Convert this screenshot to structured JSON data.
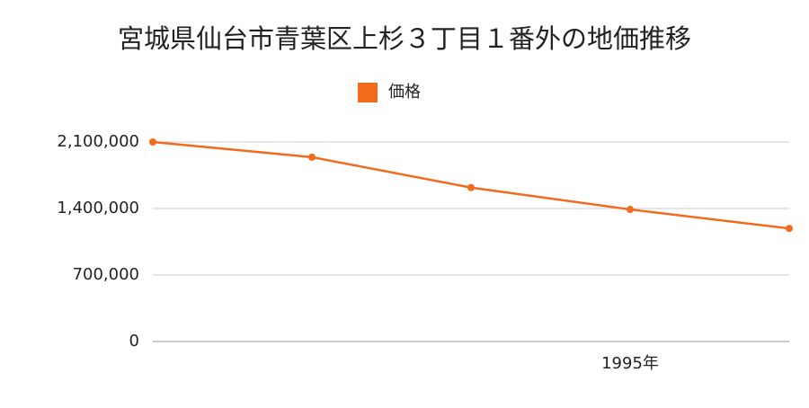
{
  "chart_data": {
    "type": "line",
    "title": "宮城県仙台市青葉区上杉３丁目１番外の地価推移",
    "categories": [
      null,
      null,
      null,
      "1995年",
      null
    ],
    "series": [
      {
        "name": "価格",
        "color": "#f26a1b",
        "values": [
          2100000,
          1940000,
          1620000,
          1390000,
          1190000
        ]
      }
    ],
    "ylim": [
      0,
      2100000
    ],
    "yticks": [
      0,
      {
        "value": 700000,
        "label": "700,000"
      },
      {
        "value": 1400000,
        "label": "1,400,000"
      },
      {
        "value": 2100000,
        "label": "2,100,000"
      }
    ],
    "grid": true
  }
}
